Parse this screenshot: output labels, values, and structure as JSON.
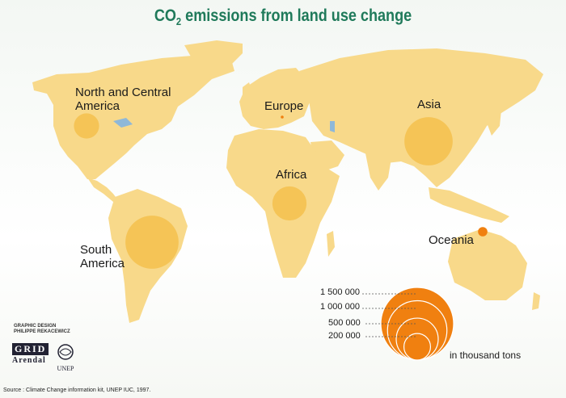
{
  "title": {
    "text": "CO",
    "sub": "2",
    "rest": " emissions from land use change"
  },
  "map": {
    "land_color": "#f8d98a",
    "bubble_color": "#f4c04c",
    "legend_color": "#f08010",
    "regions": [
      {
        "id": "north-central-america",
        "line1": "North and Central",
        "line2": "America",
        "value_thousand_tons": 180000
      },
      {
        "id": "south-america",
        "line1": "South",
        "line2": "America",
        "value_thousand_tons": 800000
      },
      {
        "id": "europe",
        "line1": "Europe",
        "line2": "",
        "value_thousand_tons": 1000
      },
      {
        "id": "africa",
        "line1": "Africa",
        "line2": "",
        "value_thousand_tons": 330000
      },
      {
        "id": "asia",
        "line1": "Asia",
        "line2": "",
        "value_thousand_tons": 660000
      },
      {
        "id": "oceania",
        "line1": "Oceania",
        "line2": "",
        "value_thousand_tons": 25000
      }
    ]
  },
  "legend": {
    "values": [
      "1 500 000",
      "1 000 000",
      "500 000",
      "200 000"
    ],
    "unit": "in thousand tons"
  },
  "credits": {
    "design_line1": "GRAPHIC DESIGN",
    "design_line2": "PHILIPPE REKACEWICZ",
    "grid_top": "GRID",
    "grid_bottom": "Arendal",
    "unep": "UNEP"
  },
  "source": "Source : Climate Change information kit, UNEP IUC, 1997."
}
